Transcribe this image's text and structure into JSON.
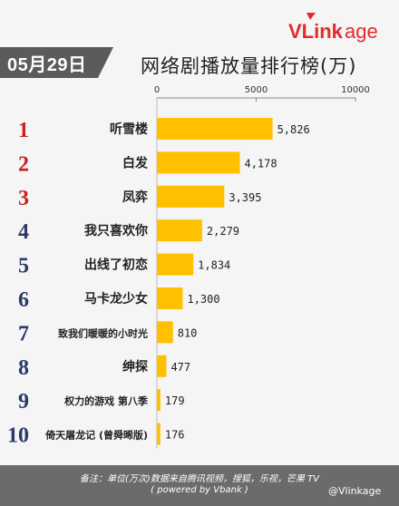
{
  "header": {
    "logo_text": "VLinkage",
    "date": "05月29日",
    "title": "网络剧播放量排行榜(万)"
  },
  "colors": {
    "bar": "#FFC000",
    "rank_top3": "#cc1f1f",
    "rank_other": "#2b3a66",
    "badge": "#5b5b5b"
  },
  "chart_data": {
    "type": "bar",
    "orientation": "horizontal",
    "title": "网络剧播放量排行榜(万)",
    "xlim": [
      0,
      10000
    ],
    "x_ticks": [
      "0",
      "5000",
      "10000"
    ],
    "ranks": [
      "1",
      "2",
      "3",
      "4",
      "5",
      "6",
      "7",
      "8",
      "9",
      "10"
    ],
    "categories": [
      "听雪楼",
      "白发",
      "凤弈",
      "我只喜欢你",
      "出线了初恋",
      "马卡龙少女",
      "致我们暖暖的小时光",
      "绅探",
      "权力的游戏 第八季",
      "倚天屠龙记 (曾舜晞版)"
    ],
    "values": [
      5826,
      4178,
      3395,
      2279,
      1834,
      1300,
      810,
      477,
      179,
      176
    ],
    "value_labels": [
      "5,826",
      "4,178",
      "3,395",
      "2,279",
      "1,834",
      "1,300",
      "810",
      "477",
      "179",
      "176"
    ]
  },
  "footer": {
    "note": "备注：单位(万次)数据来自腾讯视频，搜狐，乐视，芒果 TV",
    "powered": "( powered by Vbank )",
    "watermark": "@Vlinkage"
  }
}
